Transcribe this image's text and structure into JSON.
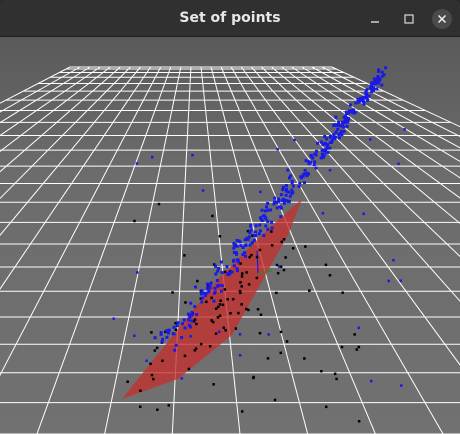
{
  "window": {
    "title": "Set of points",
    "controls": {
      "minimize_icon": "minimize-icon",
      "maximize_icon": "maximize-icon",
      "close_icon": "close-icon"
    }
  },
  "scene": {
    "background_color": "#6a6a6a",
    "grid_color": "#ffffff",
    "plane_color": "#c53030",
    "inlier_color": "#1a1ae6",
    "outlier_color": "#000000",
    "axes_colors": [
      "#2a8a2a",
      "#1a1ae6"
    ]
  }
}
